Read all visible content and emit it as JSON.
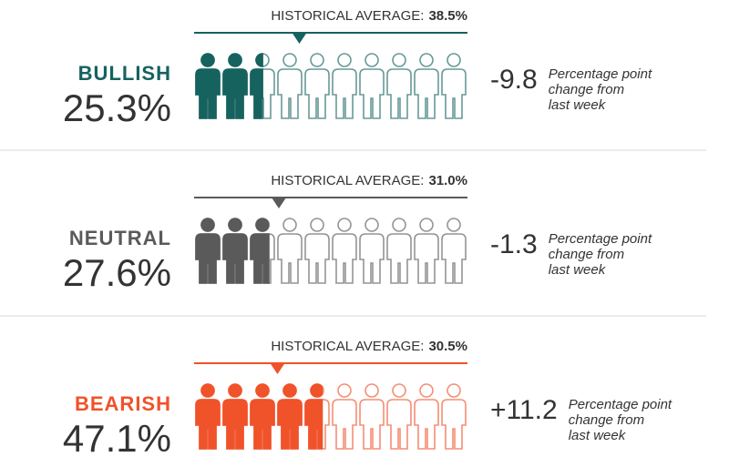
{
  "chart_data": [
    {
      "type": "pictogram",
      "label": "BULLISH",
      "values": [
        25.3
      ],
      "value_labels": [
        "25.3%"
      ],
      "color": "#16625f",
      "xlim": [
        0,
        100
      ],
      "icons": 10,
      "average_label": "HISTORICAL AVERAGE:",
      "average": 38.5,
      "average_value_label": "38.5%",
      "change": -9.8,
      "change_note": [
        "Percentage point",
        "change from",
        "last week"
      ]
    },
    {
      "type": "pictogram",
      "label": "NEUTRAL",
      "values": [
        27.6
      ],
      "value_labels": [
        "27.6%"
      ],
      "color": "#5a5a5a",
      "xlim": [
        0,
        100
      ],
      "icons": 10,
      "average_label": "HISTORICAL AVERAGE:",
      "average": 31.0,
      "average_value_label": "31.0%",
      "change": -1.3,
      "change_note": [
        "Percentage point",
        "change from",
        "last week"
      ]
    },
    {
      "type": "pictogram",
      "label": "BEARISH",
      "values": [
        47.1
      ],
      "value_labels": [
        "47.1%"
      ],
      "color": "#f0522a",
      "xlim": [
        0,
        100
      ],
      "icons": 10,
      "average_label": "HISTORICAL AVERAGE:",
      "average": 30.5,
      "average_value_label": "30.5%",
      "change": 11.2,
      "change_label": "+11.2",
      "change_note": [
        "Percentage point",
        "change from",
        "last week"
      ]
    }
  ]
}
